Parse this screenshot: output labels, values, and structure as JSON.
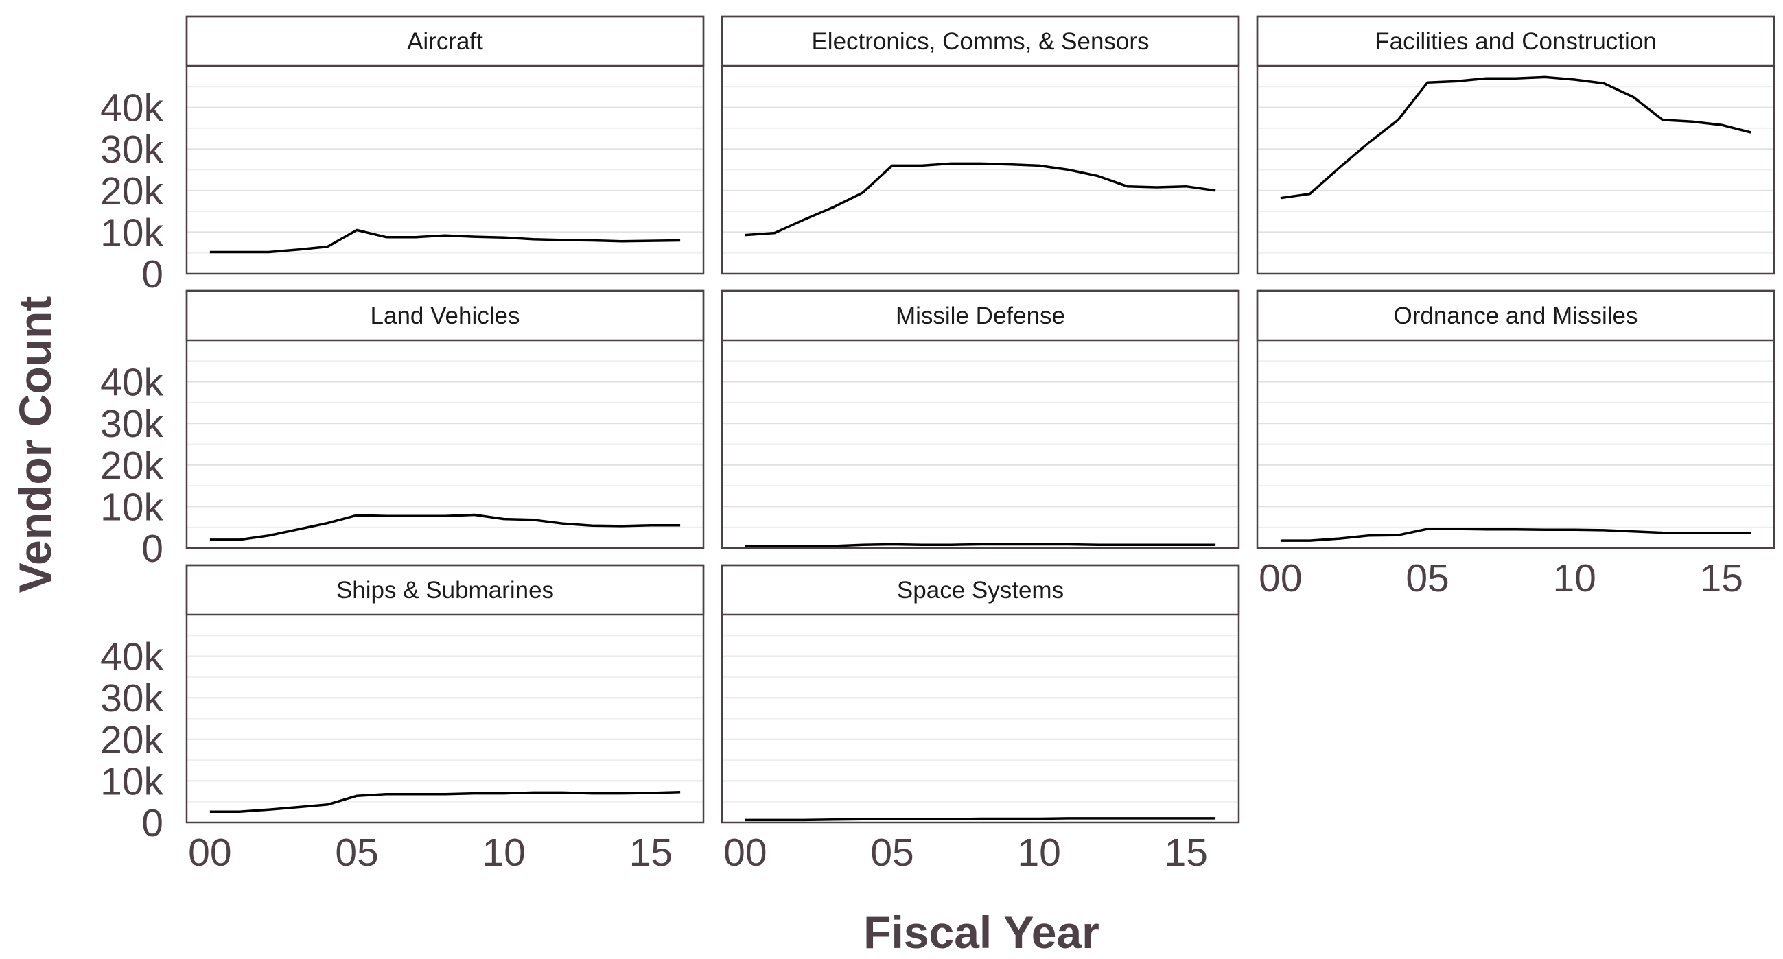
{
  "chart_data": {
    "type": "line",
    "xlabel": "Fiscal Year",
    "ylabel": "Vendor Count",
    "xlim": [
      2000,
      2016
    ],
    "ylim": [
      0,
      50000
    ],
    "x_ticks": [
      2000,
      2005,
      2010,
      2015
    ],
    "x_tick_labels": [
      "00",
      "05",
      "10",
      "15"
    ],
    "y_ticks": [
      0,
      10000,
      20000,
      30000,
      40000
    ],
    "y_tick_labels": [
      "0",
      "10k",
      "20k",
      "30k",
      "40k"
    ],
    "grid": "horizontal minor and major",
    "x": [
      2000,
      2001,
      2002,
      2003,
      2004,
      2005,
      2006,
      2007,
      2008,
      2009,
      2010,
      2011,
      2012,
      2013,
      2014,
      2015,
      2016
    ],
    "line_color": "#000000",
    "panels": [
      {
        "name": "Aircraft",
        "values": [
          5200,
          5200,
          5200,
          5800,
          6500,
          10500,
          8800,
          8800,
          9200,
          8900,
          8700,
          8300,
          8100,
          8000,
          7800,
          7900,
          8000
        ]
      },
      {
        "name": "Electronics, Comms, & Sensors",
        "values": [
          9300,
          9800,
          13000,
          16000,
          19500,
          26000,
          26000,
          26500,
          26500,
          26300,
          26000,
          25000,
          23500,
          21000,
          20800,
          21000,
          20000
        ]
      },
      {
        "name": "Facilities and Construction",
        "values": [
          18200,
          19200,
          25500,
          31500,
          37000,
          46000,
          46300,
          47000,
          47000,
          47300,
          46700,
          45800,
          42500,
          37000,
          36600,
          35800,
          34000
        ]
      },
      {
        "name": "Land Vehicles",
        "values": [
          2000,
          2000,
          3000,
          4500,
          6000,
          7900,
          7700,
          7700,
          7700,
          8000,
          7000,
          6800,
          5900,
          5400,
          5300,
          5500,
          5500
        ]
      },
      {
        "name": "Missile Defense",
        "values": [
          500,
          500,
          500,
          500,
          800,
          900,
          800,
          800,
          900,
          900,
          900,
          900,
          800,
          800,
          800,
          800,
          800
        ]
      },
      {
        "name": "Ordnance and Missiles",
        "values": [
          1800,
          1800,
          2300,
          3000,
          3100,
          4600,
          4600,
          4500,
          4500,
          4400,
          4400,
          4300,
          4000,
          3700,
          3600,
          3600,
          3600
        ]
      },
      {
        "name": "Ships & Submarines",
        "values": [
          2600,
          2600,
          3100,
          3700,
          4300,
          6400,
          6800,
          6800,
          6800,
          7000,
          7000,
          7200,
          7200,
          7000,
          7000,
          7100,
          7300
        ]
      },
      {
        "name": "Space Systems",
        "values": [
          600,
          600,
          600,
          700,
          800,
          800,
          800,
          800,
          900,
          900,
          900,
          1000,
          1000,
          1000,
          1000,
          1000,
          1000
        ]
      }
    ]
  }
}
